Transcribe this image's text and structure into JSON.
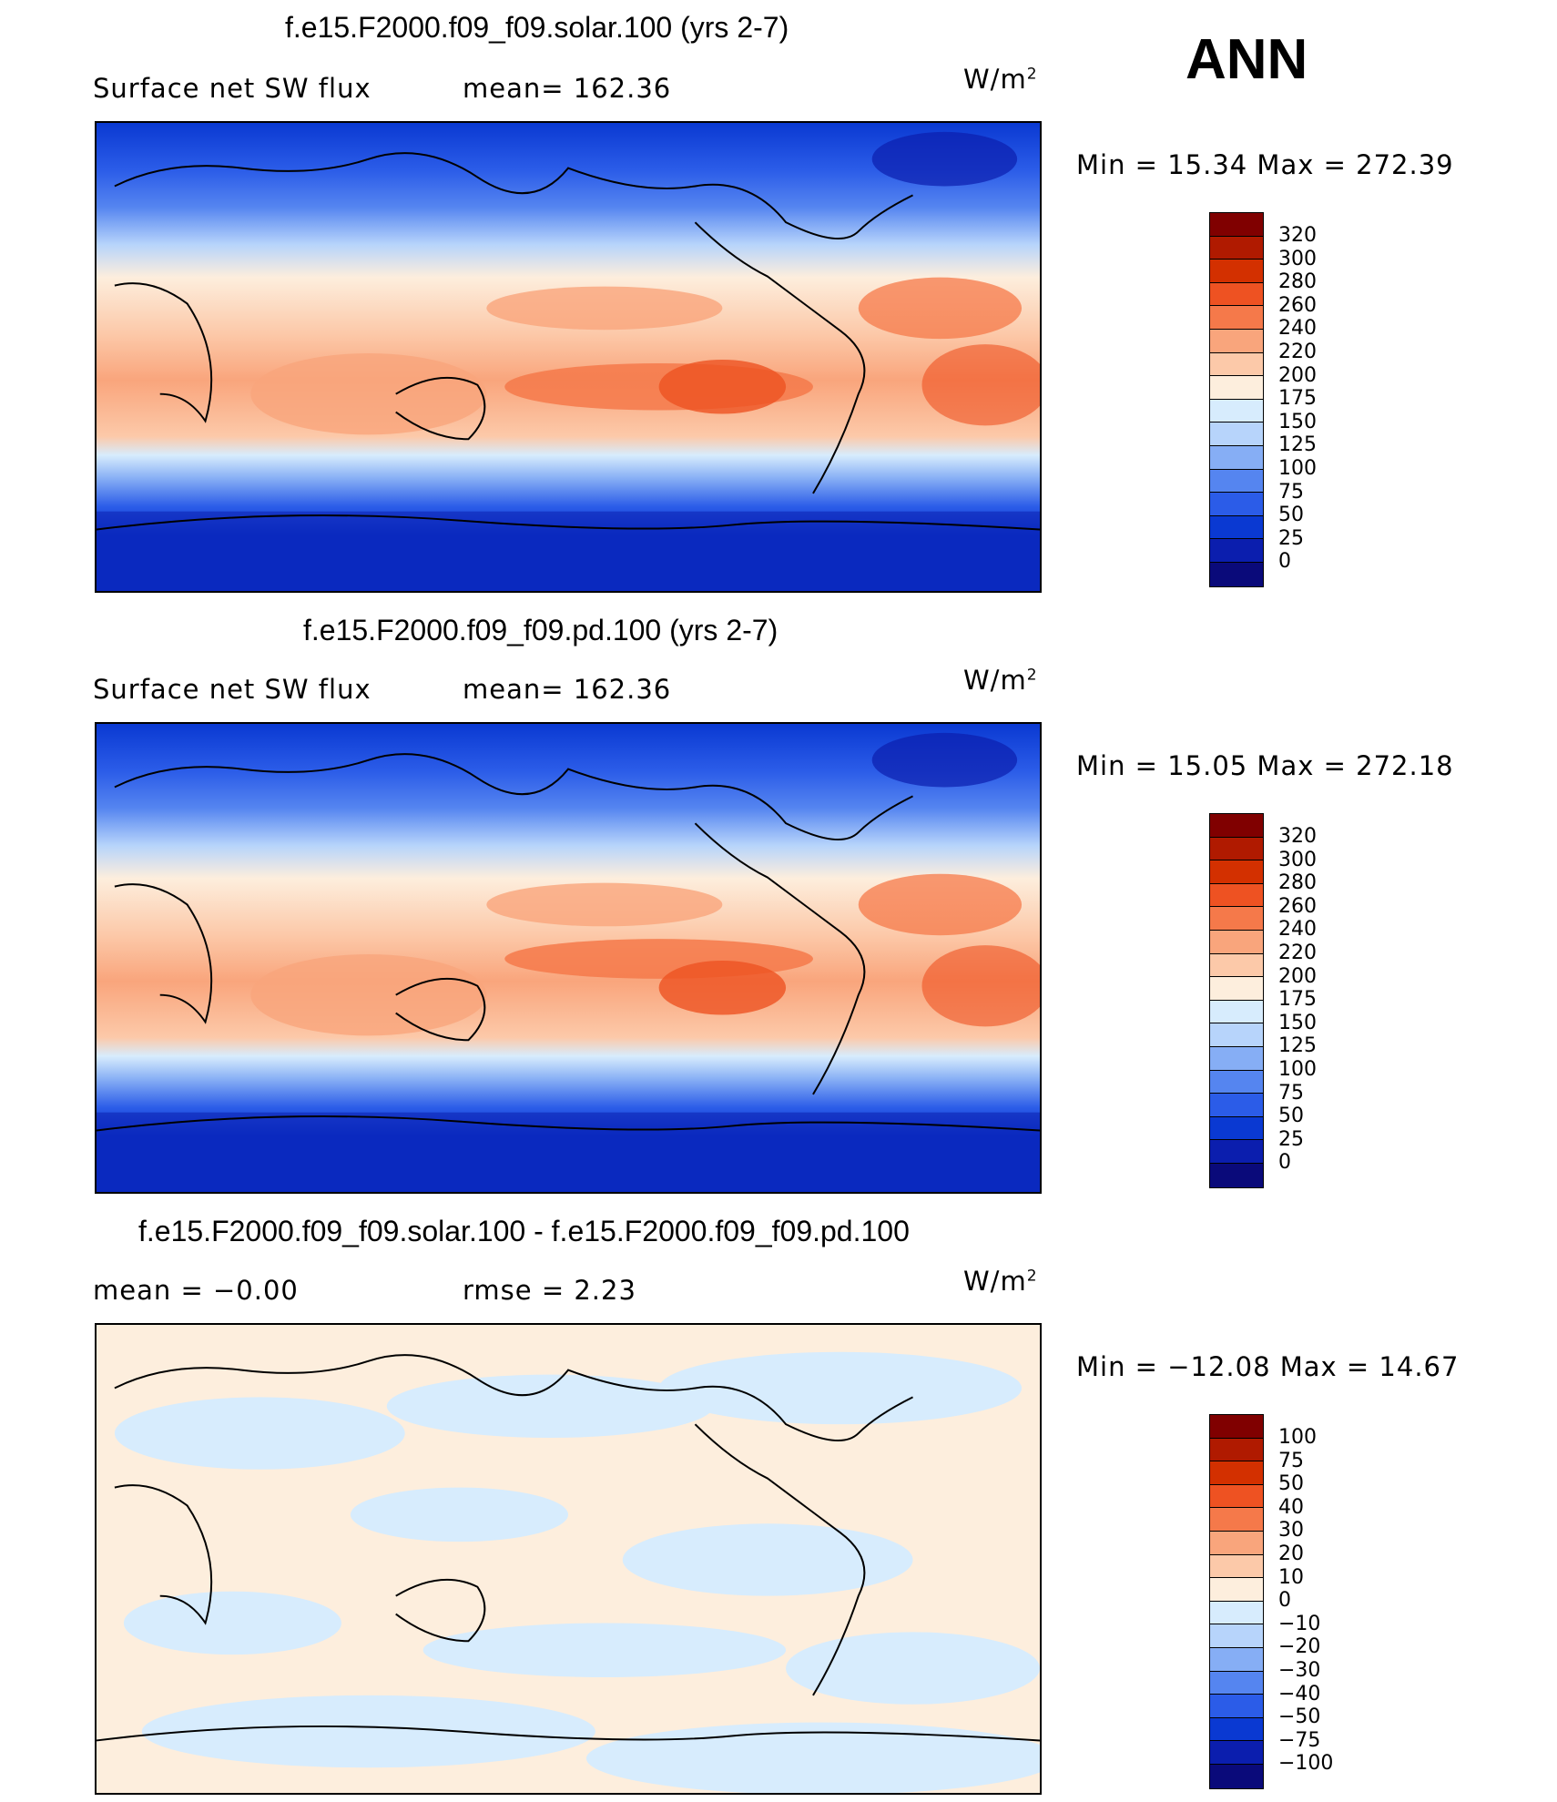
{
  "season": "ANN",
  "panels": [
    {
      "title": "f.e15.F2000.f09_f09.solar.100 (yrs 2-7)",
      "left_label": "Surface net SW flux",
      "mid_label": "mean=  162.36",
      "units": "W/m",
      "units_sup": "2",
      "minmax": "Min =   15.34 Max = 272.39",
      "colorbar_labels": [
        "320",
        "300",
        "280",
        "260",
        "240",
        "220",
        "200",
        "175",
        "150",
        "125",
        "100",
        "75",
        "50",
        "25",
        "0"
      ],
      "colors": [
        "#800000",
        "#b01a00",
        "#d33000",
        "#ee5222",
        "#f5794a",
        "#f9a57c",
        "#fcc9a9",
        "#fdeedd",
        "#d7ecfd",
        "#b7d4fb",
        "#86aef5",
        "#5585f0",
        "#2b5ce8",
        "#0a39d2",
        "#0b1eae",
        "#0a0a7a"
      ]
    },
    {
      "title": "f.e15.F2000.f09_f09.pd.100 (yrs 2-7)",
      "left_label": "Surface net SW flux",
      "mid_label": "mean=  162.36",
      "units": "W/m",
      "units_sup": "2",
      "minmax": "Min =   15.05 Max = 272.18",
      "colorbar_labels": [
        "320",
        "300",
        "280",
        "260",
        "240",
        "220",
        "200",
        "175",
        "150",
        "125",
        "100",
        "75",
        "50",
        "25",
        "0"
      ],
      "colors": [
        "#800000",
        "#b01a00",
        "#d33000",
        "#ee5222",
        "#f5794a",
        "#f9a57c",
        "#fcc9a9",
        "#fdeedd",
        "#d7ecfd",
        "#b7d4fb",
        "#86aef5",
        "#5585f0",
        "#2b5ce8",
        "#0a39d2",
        "#0b1eae",
        "#0a0a7a"
      ]
    },
    {
      "title": "f.e15.F2000.f09_f09.solar.100 - f.e15.F2000.f09_f09.pd.100",
      "left_label": "mean =   −0.00",
      "mid_label": "rmse =    2.23",
      "units": "W/m",
      "units_sup": "2",
      "minmax": "Min = −12.08 Max =   14.67",
      "colorbar_labels": [
        "100",
        "75",
        "50",
        "40",
        "30",
        "20",
        "10",
        "0",
        "−10",
        "−20",
        "−30",
        "−40",
        "−50",
        "−75",
        "−100"
      ],
      "colors": [
        "#800000",
        "#b01a00",
        "#d33000",
        "#ee5222",
        "#f5794a",
        "#f9a57c",
        "#fcc9a9",
        "#fdeedd",
        "#d7ecfd",
        "#b7d4fb",
        "#86aef5",
        "#5585f0",
        "#2b5ce8",
        "#0a39d2",
        "#0b1eae",
        "#0a0a7a"
      ]
    }
  ]
}
